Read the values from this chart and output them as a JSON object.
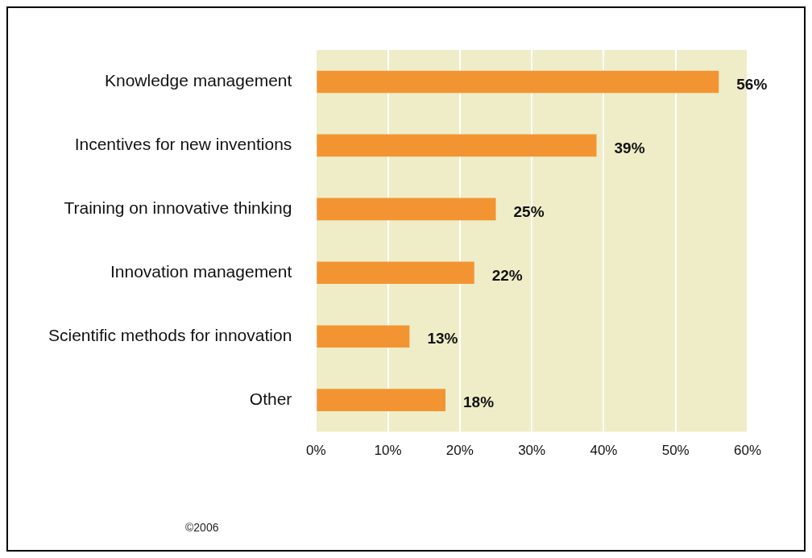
{
  "chart_data": {
    "type": "bar",
    "orientation": "horizontal",
    "categories": [
      "Knowledge management",
      "Incentives for new inventions",
      "Training on innovative thinking",
      "Innovation management",
      "Scientific methods for innovation",
      "Other"
    ],
    "values": [
      56,
      39,
      25,
      22,
      13,
      18
    ],
    "value_labels": [
      "56%",
      "39%",
      "25%",
      "22%",
      "13%",
      "18%"
    ],
    "color": "#f39433",
    "xlim": [
      0,
      60
    ],
    "xticks": [
      {
        "value": 0,
        "label": "0%"
      },
      {
        "value": 10,
        "label": "10%"
      },
      {
        "value": 20,
        "label": "20%"
      },
      {
        "value": 30,
        "label": "30%"
      },
      {
        "value": 40,
        "label": "40%"
      },
      {
        "value": 50,
        "label": "50%"
      },
      {
        "value": 60,
        "label": "60%"
      }
    ],
    "grid": "x",
    "legend": false,
    "annotations": [
      "©2006"
    ]
  }
}
